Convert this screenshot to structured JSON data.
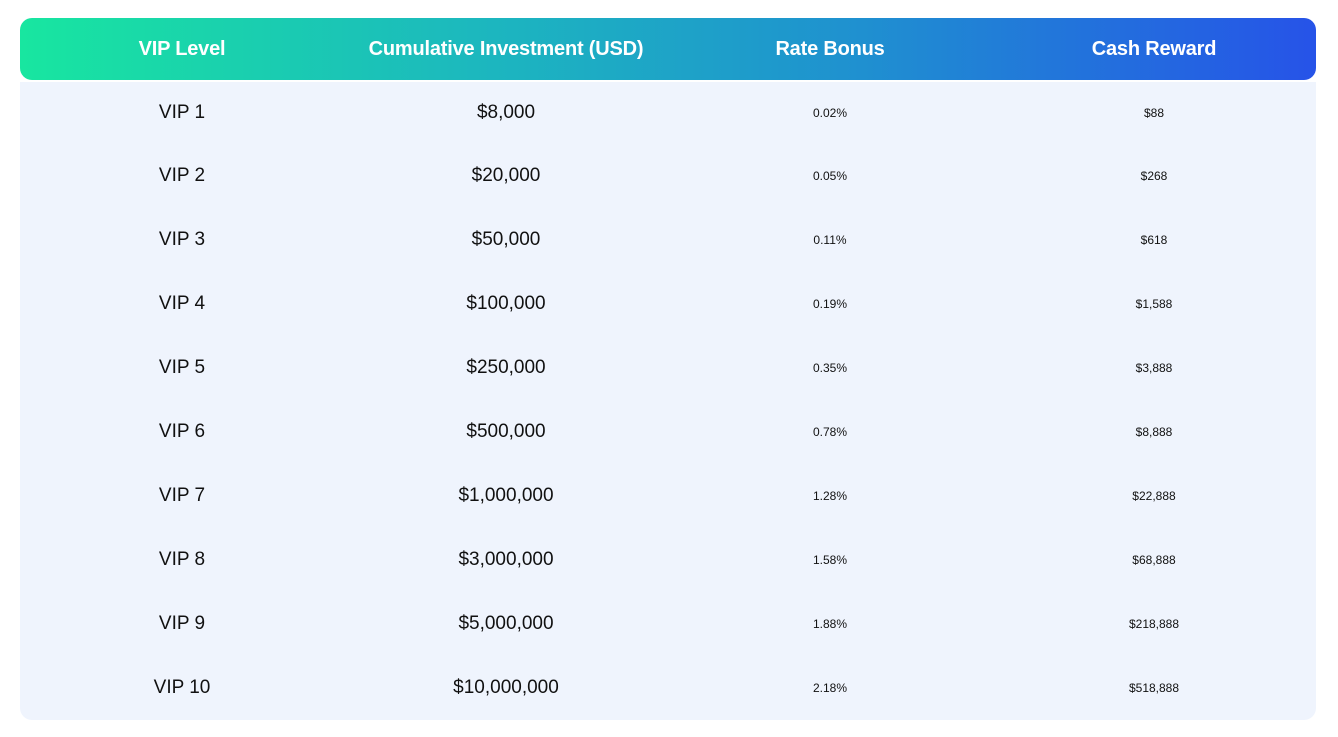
{
  "header": {
    "vip_level": "VIP Level",
    "cumulative_investment": "Cumulative Investment (USD)",
    "rate_bonus": "Rate Bonus",
    "cash_reward": "Cash Reward"
  },
  "rows": [
    {
      "level": "VIP 1",
      "investment": "$8,000",
      "rate": "0.02%",
      "cash": "$88"
    },
    {
      "level": "VIP 2",
      "investment": "$20,000",
      "rate": "0.05%",
      "cash": "$268"
    },
    {
      "level": "VIP 3",
      "investment": "$50,000",
      "rate": "0.11%",
      "cash": "$618"
    },
    {
      "level": "VIP 4",
      "investment": "$100,000",
      "rate": "0.19%",
      "cash": "$1,588"
    },
    {
      "level": "VIP 5",
      "investment": "$250,000",
      "rate": "0.35%",
      "cash": "$3,888"
    },
    {
      "level": "VIP 6",
      "investment": "$500,000",
      "rate": "0.78%",
      "cash": "$8,888"
    },
    {
      "level": "VIP 7",
      "investment": "$1,000,000",
      "rate": "1.28%",
      "cash": "$22,888"
    },
    {
      "level": "VIP 8",
      "investment": "$3,000,000",
      "rate": "1.58%",
      "cash": "$68,888"
    },
    {
      "level": "VIP 9",
      "investment": "$5,000,000",
      "rate": "1.88%",
      "cash": "$218,888"
    },
    {
      "level": "VIP 10",
      "investment": "$10,000,000",
      "rate": "2.18%",
      "cash": "$518,888"
    }
  ],
  "colors": {
    "header_gradient_start": "#18e6a0",
    "header_gradient_end": "#2653e8",
    "body_background": "#eff4fd"
  }
}
